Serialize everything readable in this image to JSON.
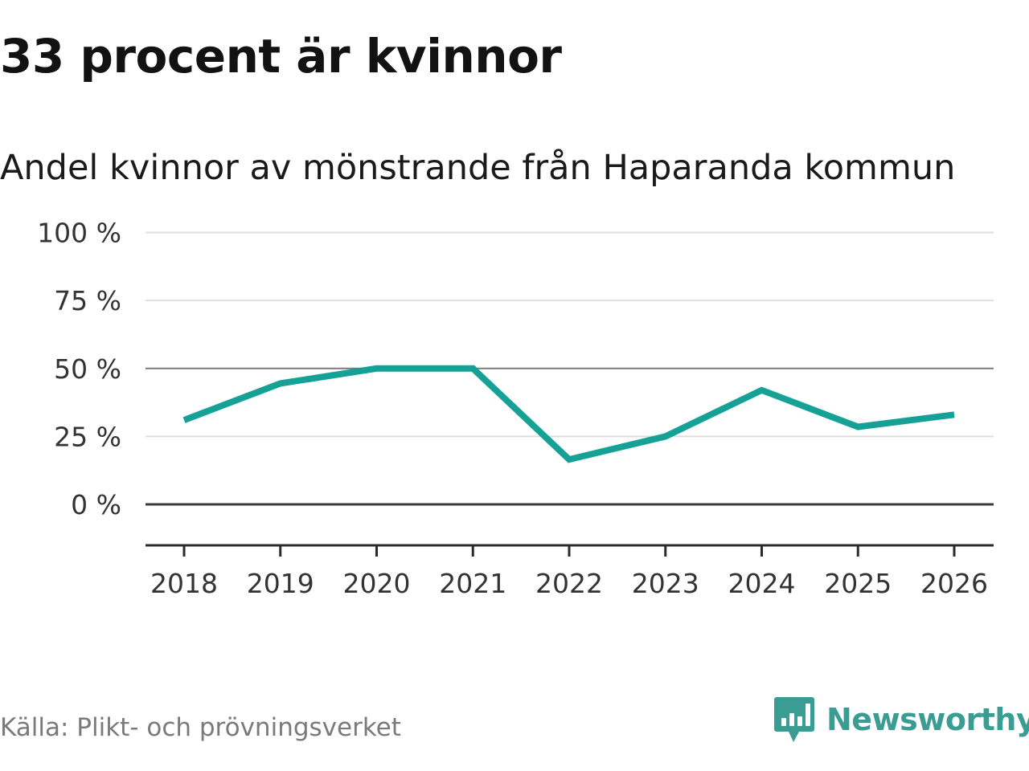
{
  "chart_data": {
    "type": "line",
    "title": "33 procent är kvinnor",
    "subtitle": "Andel kvinnor av mönstrande från Haparanda kommun",
    "categories": [
      "2018",
      "2019",
      "2020",
      "2021",
      "2022",
      "2023",
      "2024",
      "2025",
      "2026"
    ],
    "series": [
      {
        "name": "Andel kvinnor",
        "values": [
          31,
          44.5,
          50,
          50,
          16.5,
          25,
          42,
          28.5,
          33
        ]
      }
    ],
    "y_ticks": [
      {
        "value": 100,
        "label": "100 %"
      },
      {
        "value": 75,
        "label": "75 %"
      },
      {
        "value": 50,
        "label": "50 %"
      },
      {
        "value": 25,
        "label": "25 %"
      },
      {
        "value": 0,
        "label": "0 %"
      }
    ],
    "ylim": [
      -15,
      100
    ],
    "xlabel": "",
    "ylabel": "",
    "grid": true,
    "line_color": "#16a196"
  },
  "footer": {
    "source": "Källa: Plikt- och prövningsverket",
    "brand": "Newsworthy",
    "brand_color": "#3a9c92"
  }
}
